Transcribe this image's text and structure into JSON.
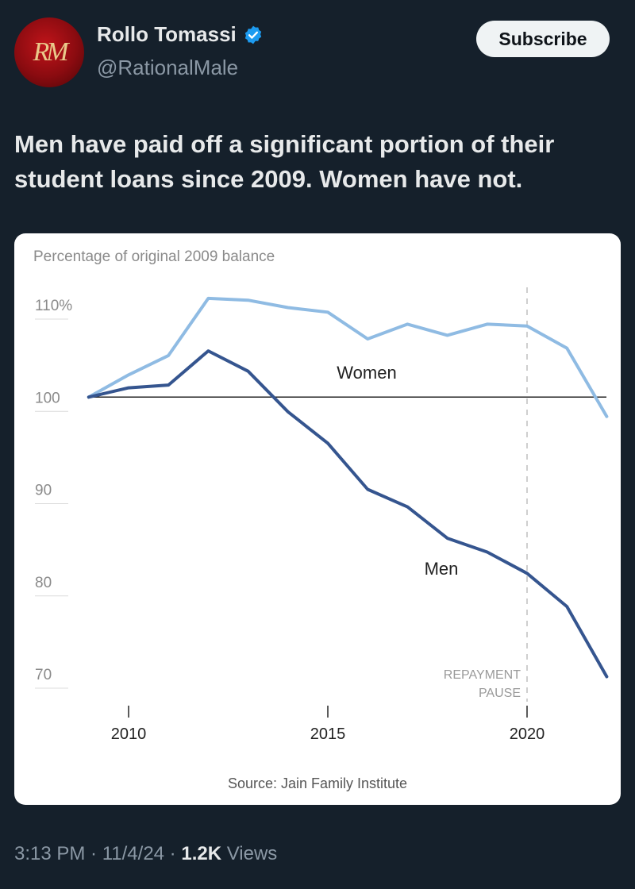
{
  "author": {
    "avatar_text": "RM",
    "name": "Rollo Tomassi",
    "handle": "@RationalMale",
    "verified": true
  },
  "subscribe_label": "Subscribe",
  "tweet_text": "Men have paid off a significant portion of their student loans since 2009. Women have not.",
  "footer": {
    "time": "3:13 PM",
    "sep1": " · ",
    "date": "11/4/24",
    "sep2": " · ",
    "views_count": "1.2K",
    "views_label": " Views"
  },
  "chart_data": {
    "type": "line",
    "title": "Percentage of original 2009 balance",
    "source": "Source: Jain Family Institute",
    "x": [
      2009,
      2010,
      2011,
      2012,
      2013,
      2014,
      2015,
      2016,
      2017,
      2018,
      2019,
      2020,
      2021,
      2022
    ],
    "xticks": [
      2010,
      2015,
      2020
    ],
    "xlim": [
      2008,
      2022
    ],
    "ylim": [
      70,
      110
    ],
    "yticks": [
      {
        "value": 110,
        "label": "110%"
      },
      {
        "value": 100,
        "label": "100"
      },
      {
        "value": 90,
        "label": "90"
      },
      {
        "value": 80,
        "label": "80"
      },
      {
        "value": 70,
        "label": "70"
      }
    ],
    "reference_line": 100,
    "annotation": {
      "x": 2020,
      "lines": [
        "REPAYMENT",
        "PAUSE"
      ]
    },
    "series": [
      {
        "name": "Women",
        "color": "#8fbbe3",
        "values": [
          100,
          102.4,
          104.5,
          110.7,
          110.5,
          109.7,
          109.2,
          106.3,
          107.9,
          106.7,
          107.9,
          107.7,
          105.3,
          97.9
        ]
      },
      {
        "name": "Men",
        "color": "#35558f",
        "values": [
          100,
          101.0,
          101.3,
          105.0,
          102.8,
          98.4,
          95.0,
          90.0,
          88.1,
          84.7,
          83.2,
          80.9,
          77.3,
          69.7
        ]
      }
    ]
  }
}
